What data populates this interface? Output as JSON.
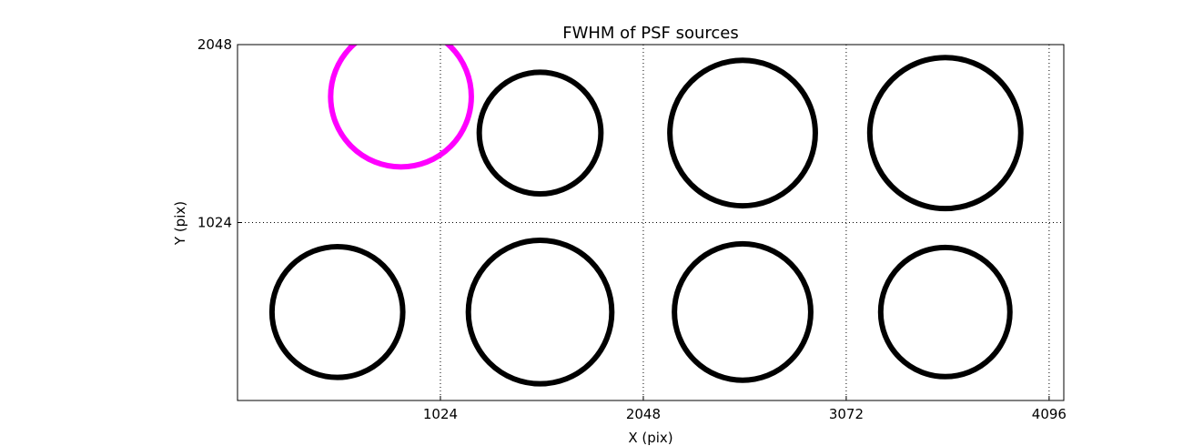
{
  "chart_data": {
    "type": "scatter",
    "title": "FWHM of PSF sources",
    "x_label": "X (pix)",
    "y_label": "Y (pix)",
    "x": [
      825,
      1527,
      2549,
      3572,
      504,
      1527,
      2549,
      3572
    ],
    "y": [
      1749,
      1539,
      1539,
      1539,
      509,
      509,
      509,
      509
    ],
    "sizes": [
      355,
      307,
      367,
      381,
      330,
      362,
      344,
      326
    ],
    "colors": [
      "#ff00ff",
      "#000000",
      "#000000",
      "#000000",
      "#000000",
      "#000000",
      "#000000",
      "#000000"
    ],
    "xlim": [
      0,
      4170
    ],
    "ylim": [
      0,
      2048
    ],
    "xticks": [
      1024,
      2048,
      3072,
      4096
    ],
    "yticks": [
      1024,
      2048
    ],
    "grid": true
  }
}
